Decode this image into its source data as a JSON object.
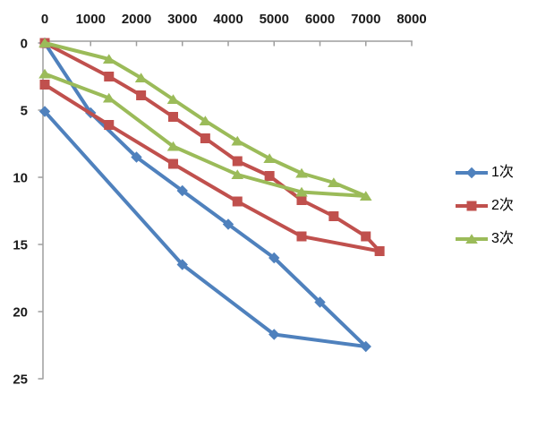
{
  "page": {
    "background": "#FFFFFF",
    "title": ""
  },
  "chart_data": {
    "type": "line",
    "title": "",
    "xlabel": "",
    "ylabel": "",
    "grid": false,
    "legend_position": "right",
    "x_axis": {
      "position": "top",
      "min": 0,
      "max": 8000,
      "tick_step": 1000,
      "ticks": [
        0,
        1000,
        2000,
        3000,
        4000,
        5000,
        6000,
        7000,
        8000
      ]
    },
    "y_axis": {
      "position": "left",
      "inverted": true,
      "min": 0,
      "max": 25,
      "tick_step": 5,
      "ticks": [
        0,
        5,
        10,
        15,
        20,
        25
      ]
    },
    "colors": {
      "axis": "#9E9E9E",
      "text": "#1A1A1A"
    },
    "series": [
      {
        "name": "1次",
        "color": "#4F81BD",
        "marker": "diamond",
        "loading_points": [
          [
            0,
            0
          ],
          [
            1000,
            5.2
          ],
          [
            2000,
            8.5
          ],
          [
            3000,
            11.0
          ],
          [
            4000,
            13.5
          ],
          [
            5000,
            16.0
          ],
          [
            6000,
            19.3
          ],
          [
            7000,
            22.6
          ]
        ],
        "unloading_points": [
          [
            5000,
            21.7
          ],
          [
            3000,
            16.5
          ],
          [
            0,
            5.1
          ]
        ]
      },
      {
        "name": "2次",
        "color": "#C0504D",
        "marker": "square",
        "loading_points": [
          [
            0,
            0
          ],
          [
            1400,
            2.5
          ],
          [
            2100,
            3.9
          ],
          [
            2800,
            5.5
          ],
          [
            3500,
            7.1
          ],
          [
            4200,
            8.8
          ],
          [
            4900,
            9.9
          ],
          [
            5600,
            11.7
          ],
          [
            6300,
            12.9
          ],
          [
            7000,
            14.4
          ],
          [
            7300,
            15.5
          ]
        ],
        "unloading_points": [
          [
            5600,
            14.4
          ],
          [
            4200,
            11.8
          ],
          [
            2800,
            9.0
          ],
          [
            1400,
            6.1
          ],
          [
            0,
            3.1
          ]
        ]
      },
      {
        "name": "3次",
        "color": "#9BBB59",
        "marker": "triangle",
        "loading_points": [
          [
            0,
            0
          ],
          [
            1400,
            1.2
          ],
          [
            2100,
            2.6
          ],
          [
            2800,
            4.2
          ],
          [
            3500,
            5.8
          ],
          [
            4200,
            7.3
          ],
          [
            4900,
            8.6
          ],
          [
            5600,
            9.7
          ],
          [
            6300,
            10.4
          ],
          [
            7000,
            11.4
          ]
        ],
        "unloading_points": [
          [
            5600,
            11.1
          ],
          [
            4200,
            9.8
          ],
          [
            2800,
            7.7
          ],
          [
            1400,
            4.1
          ],
          [
            0,
            2.3
          ]
        ]
      }
    ]
  }
}
